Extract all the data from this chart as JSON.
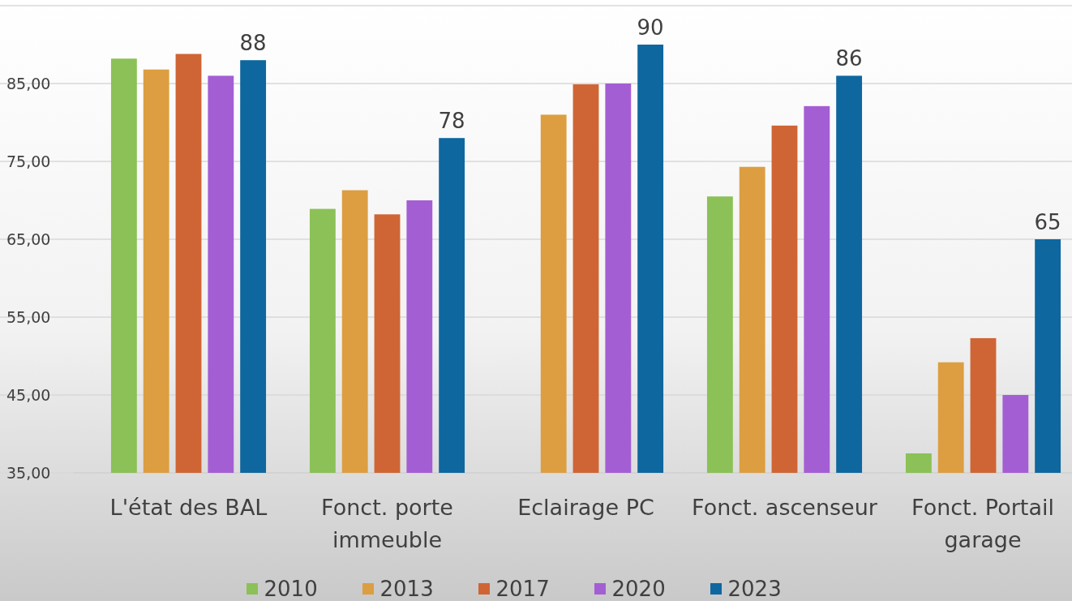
{
  "chart_data": {
    "type": "bar",
    "categories": [
      "L'état des BAL",
      "Fonct. porte immeuble",
      "Eclairage PC",
      "Fonct. ascenseur",
      "Fonct. Portail garage"
    ],
    "series": [
      {
        "name": "2010",
        "color": "#8bc157",
        "values": [
          88.2,
          68.9,
          null,
          70.5,
          37.5
        ]
      },
      {
        "name": "2013",
        "color": "#dc9e41",
        "values": [
          86.8,
          71.3,
          81,
          74.3,
          49.2
        ]
      },
      {
        "name": "2017",
        "color": "#cf6534",
        "values": [
          88.8,
          68.2,
          84.9,
          79.6,
          52.3
        ]
      },
      {
        "name": "2020",
        "color": "#a45ed4",
        "values": [
          86,
          70,
          85,
          82.1,
          45
        ]
      },
      {
        "name": "2023",
        "color": "#0e679f",
        "values": [
          88,
          78,
          90,
          86,
          65
        ],
        "value_labels": [
          "88",
          "78",
          "90",
          "86",
          "65"
        ]
      }
    ],
    "ylim": [
      35,
      95
    ],
    "yticks": [
      {
        "value": 35,
        "label": "35,00"
      },
      {
        "value": 45,
        "label": "45,00"
      },
      {
        "value": 55,
        "label": "55,00"
      },
      {
        "value": 65,
        "label": "65,00"
      },
      {
        "value": 75,
        "label": "75,00"
      },
      {
        "value": 85,
        "label": "85,00"
      },
      {
        "value": 95,
        "label": null
      }
    ],
    "grid": "y",
    "legend": "bottom"
  }
}
